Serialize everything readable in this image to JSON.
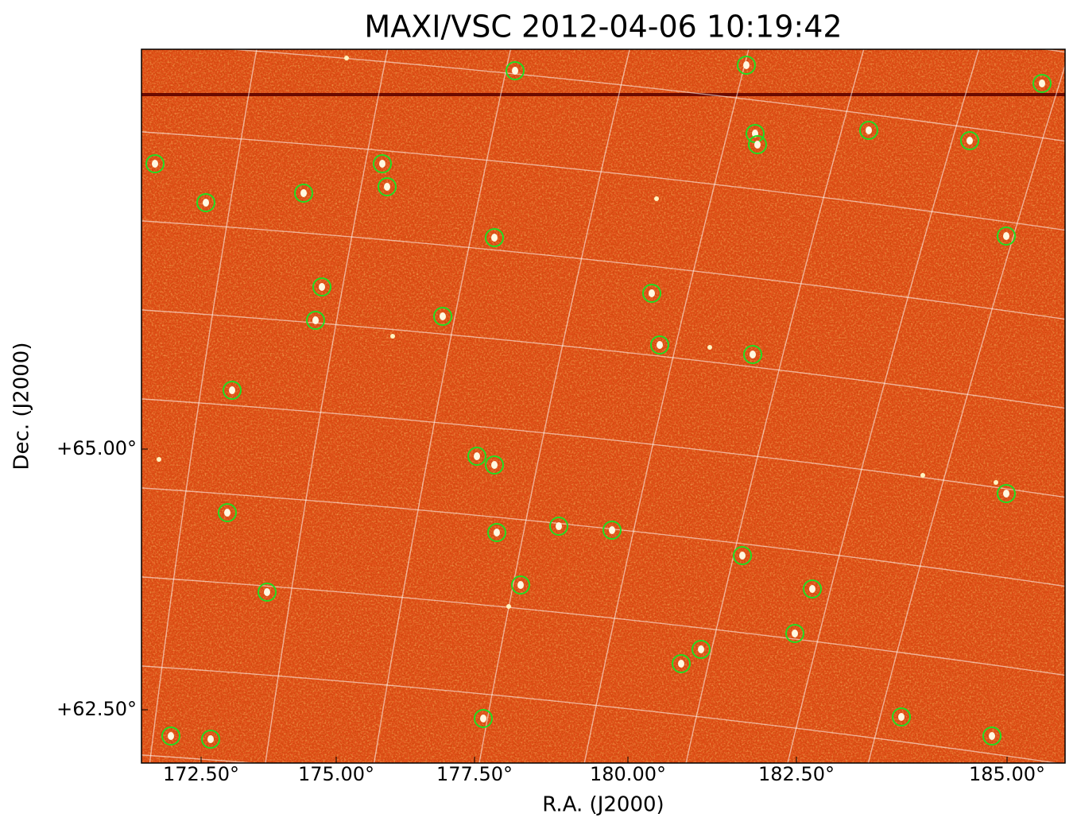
{
  "title": "MAXI/VSC 2012-04-06 10:19:42",
  "x_axis": {
    "label": "R.A. (J2000)",
    "tick_labels": [
      "172.50°",
      "175.00°",
      "177.50°",
      "180.00°",
      "182.50°",
      "185.00°"
    ]
  },
  "y_axis": {
    "label": "Dec. (J2000)",
    "tick_labels": [
      "+65.00°",
      "+62.50°"
    ]
  }
}
